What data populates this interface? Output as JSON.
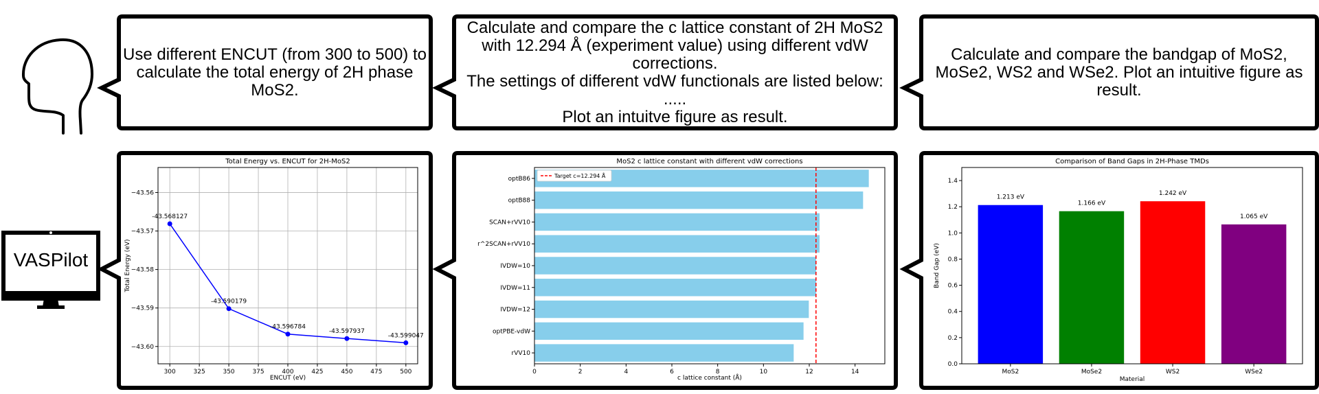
{
  "prompts": [
    {
      "lines": [
        "Use different ENCUT (from 300 to 500) to",
        "calculate the total energy of 2H phase",
        "MoS2."
      ]
    },
    {
      "lines": [
        "Calculate and compare the c lattice constant of 2H MoS2",
        "with 12.294 Å (experiment value) using different vdW",
        "corrections.",
        "The settings of different vdW functionals are listed below:",
        ".....",
        "Plot an intuitve figure as result."
      ]
    },
    {
      "lines": [
        "Calculate and compare the bandgap of MoS2,",
        "MoSe2, WS2 and WSe2. Plot an intuitive figure as",
        "result."
      ]
    }
  ],
  "agent": {
    "name": "VASPilot"
  },
  "icons": {
    "user": "human-head-icon",
    "agent": "computer-monitor-icon"
  },
  "chart_data": [
    {
      "type": "line",
      "title": "Total Energy vs. ENCUT for 2H-MoS2",
      "xlabel": "ENCUT (eV)",
      "ylabel": "Total Energy (eV)",
      "x": [
        300,
        350,
        400,
        450,
        500
      ],
      "series": [
        {
          "values": [
            -43.568127,
            -43.590179,
            -43.596784,
            -43.597937,
            -43.599047
          ],
          "color": "#0000ff"
        }
      ],
      "point_labels": [
        "-43.568127",
        "-43.590179",
        "-43.596784",
        "-43.597937",
        "-43.599047"
      ],
      "xlim": [
        290,
        510
      ],
      "ylim": [
        -43.6045,
        -43.5535
      ],
      "xticks": [
        300,
        325,
        350,
        375,
        400,
        425,
        450,
        475,
        500
      ],
      "yticks": [
        -43.56,
        -43.57,
        -43.58,
        -43.59,
        -43.6
      ],
      "ytick_labels": [
        "−43.56",
        "−43.57",
        "−43.58",
        "−43.59",
        "−43.60"
      ],
      "grid": true
    },
    {
      "type": "bar",
      "orientation": "horizontal",
      "title": "MoS2 c lattice constant with different vdW corrections",
      "xlabel": "c lattice constant (Å)",
      "ylabel": "",
      "categories": [
        "optB86",
        "optB88",
        "SCAN+rVV10",
        "r^2SCAN+rVV10",
        "IVDW=10",
        "IVDW=11",
        "IVDW=12",
        "optPBE-vdW",
        "rVV10"
      ],
      "values": [
        14.6,
        14.35,
        12.45,
        12.45,
        12.3,
        12.3,
        11.98,
        11.75,
        11.32
      ],
      "bar_color": "#87ceeb",
      "reference_line": {
        "value": 12.294,
        "label": "Target c=12.294 Å",
        "color": "#ff0000",
        "legend_position": "top-left"
      },
      "xlim": [
        0,
        15.3
      ],
      "xticks": [
        0,
        2,
        4,
        6,
        8,
        10,
        12,
        14
      ],
      "grid": false
    },
    {
      "type": "bar",
      "title": "Comparison of Band Gaps in 2H-Phase TMDs",
      "xlabel": "Material",
      "ylabel": "Band Gap (eV)",
      "categories": [
        "MoS2",
        "MoSe2",
        "WS2",
        "WSe2"
      ],
      "values": [
        1.213,
        1.166,
        1.242,
        1.065
      ],
      "value_labels": [
        "1.213 eV",
        "1.166 eV",
        "1.242 eV",
        "1.065 eV"
      ],
      "colors": [
        "#0000ff",
        "#008000",
        "#ff0000",
        "#800080"
      ],
      "ylim": [
        0,
        1.5
      ],
      "yticks": [
        0.0,
        0.2,
        0.4,
        0.6,
        0.8,
        1.0,
        1.2,
        1.4
      ],
      "ytick_labels": [
        "0.0",
        "0.2",
        "0.4",
        "0.6",
        "0.8",
        "1.0",
        "1.2",
        "1.4"
      ],
      "grid": false
    }
  ]
}
